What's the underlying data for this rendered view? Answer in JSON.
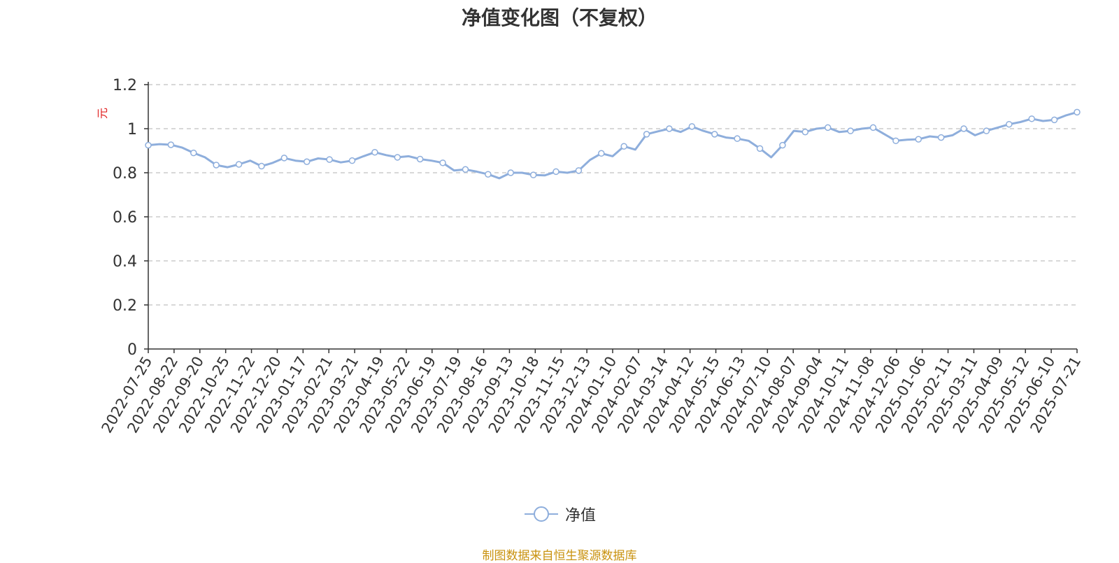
{
  "chart_data": {
    "type": "line",
    "title": "净值变化图（不复权）",
    "ylabel": "元",
    "ylim": [
      0,
      1.2
    ],
    "yticks": [
      "0",
      "0.2",
      "0.4",
      "0.6",
      "0.8",
      "1",
      "1.2"
    ],
    "grid": "horizontal dashed",
    "legend_position": "bottom-center",
    "x_tick_labels": [
      "2022-07-25",
      "2022-08-22",
      "2022-09-20",
      "2022-10-25",
      "2022-11-22",
      "2022-12-20",
      "2023-01-17",
      "2023-02-21",
      "2023-03-21",
      "2023-04-19",
      "2023-05-22",
      "2023-06-19",
      "2023-07-19",
      "2023-08-16",
      "2023-09-13",
      "2023-10-18",
      "2023-11-15",
      "2023-12-13",
      "2024-01-10",
      "2024-02-07",
      "2024-03-14",
      "2024-04-12",
      "2024-05-15",
      "2024-06-13",
      "2024-07-10",
      "2024-08-07",
      "2024-09-04",
      "2024-10-11",
      "2024-11-08",
      "2024-12-06",
      "2025-01-06",
      "2025-02-11",
      "2025-03-11",
      "2025-04-09",
      "2025-05-12",
      "2025-06-10",
      "2025-07-21"
    ],
    "series": [
      {
        "name": "净值",
        "color": "#8eaedc",
        "values": [
          0.925,
          0.93,
          0.927,
          0.914,
          0.89,
          0.87,
          0.835,
          0.825,
          0.838,
          0.855,
          0.83,
          0.845,
          0.867,
          0.855,
          0.85,
          0.865,
          0.86,
          0.847,
          0.855,
          0.875,
          0.893,
          0.88,
          0.87,
          0.875,
          0.862,
          0.855,
          0.845,
          0.81,
          0.815,
          0.805,
          0.793,
          0.775,
          0.8,
          0.8,
          0.79,
          0.788,
          0.805,
          0.8,
          0.81,
          0.858,
          0.888,
          0.875,
          0.92,
          0.905,
          0.975,
          0.988,
          1.0,
          0.985,
          1.01,
          0.99,
          0.975,
          0.96,
          0.955,
          0.945,
          0.91,
          0.87,
          0.925,
          0.99,
          0.985,
          1.0,
          1.005,
          0.985,
          0.99,
          1.0,
          1.005,
          0.975,
          0.945,
          0.95,
          0.952,
          0.965,
          0.96,
          0.97,
          1.0,
          0.97,
          0.99,
          1.005,
          1.02,
          1.03,
          1.045,
          1.035,
          1.04,
          1.06,
          1.075
        ]
      }
    ]
  },
  "legend": {
    "label": "净值"
  },
  "source_note": "制图数据来自恒生聚源数据库"
}
